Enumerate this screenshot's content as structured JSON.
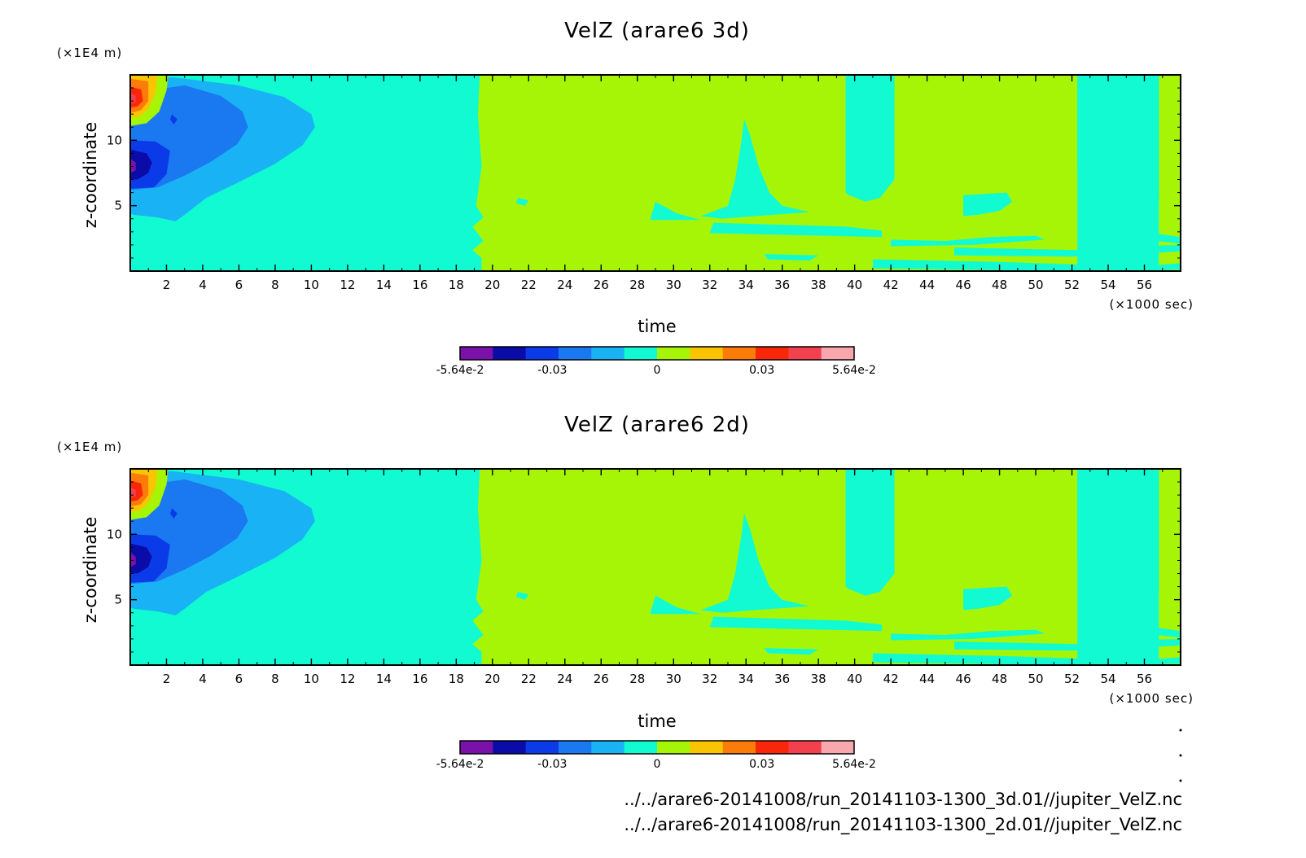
{
  "chart_data": [
    {
      "type": "heatmap",
      "title": "VelZ (arare6 3d)",
      "xlabel": "time",
      "ylabel": "z-coordinate",
      "x_unit": "(×1000 sec)",
      "y_unit": "(×1E4 m)",
      "xlim": [
        0,
        58
      ],
      "ylim": [
        0,
        15
      ],
      "x_ticks": [
        "2",
        "4",
        "6",
        "8",
        "10",
        "12",
        "14",
        "16",
        "18",
        "20",
        "22",
        "24",
        "26",
        "28",
        "30",
        "32",
        "34",
        "36",
        "38",
        "40",
        "42",
        "44",
        "46",
        "48",
        "50",
        "52",
        "54",
        "56"
      ],
      "y_ticks": [
        "5",
        "10"
      ],
      "colorbar": {
        "min": -0.0564,
        "max": 0.0564,
        "tick_labels": [
          "-5.64e-2",
          "-0.03",
          "0",
          "0.03",
          "5.64e-2"
        ],
        "tick_values": [
          -0.0564,
          -0.03,
          0,
          0.03,
          0.0564
        ],
        "colors": [
          "#7a12a9",
          "#0b0ba8",
          "#0b3be8",
          "#1a78f0",
          "#19b3f5",
          "#12fad2",
          "#a6f507",
          "#f9c503",
          "#fb7c08",
          "#fa260a",
          "#f2404e",
          "#f7a7ad"
        ]
      },
      "background_level": "#12fad2"
    },
    {
      "type": "heatmap",
      "title": "VelZ (arare6 2d)",
      "xlabel": "time",
      "ylabel": "z-coordinate",
      "x_unit": "(×1000 sec)",
      "y_unit": "(×1E4 m)",
      "xlim": [
        0,
        58
      ],
      "ylim": [
        0,
        15
      ],
      "x_ticks": [
        "2",
        "4",
        "6",
        "8",
        "10",
        "12",
        "14",
        "16",
        "18",
        "20",
        "22",
        "24",
        "26",
        "28",
        "30",
        "32",
        "34",
        "36",
        "38",
        "40",
        "42",
        "44",
        "46",
        "48",
        "50",
        "52",
        "54",
        "56"
      ],
      "y_ticks": [
        "5",
        "10"
      ],
      "colorbar": {
        "min": -0.0564,
        "max": 0.0564,
        "tick_labels": [
          "-5.64e-2",
          "-0.03",
          "0",
          "0.03",
          "5.64e-2"
        ],
        "tick_values": [
          -0.0564,
          -0.03,
          0,
          0.03,
          0.0564
        ],
        "colors": [
          "#7a12a9",
          "#0b0ba8",
          "#0b3be8",
          "#1a78f0",
          "#19b3f5",
          "#12fad2",
          "#a6f507",
          "#f9c503",
          "#fb7c08",
          "#fa260a",
          "#f2404e",
          "#f7a7ad"
        ]
      },
      "background_level": "#12fad2"
    }
  ],
  "footer": {
    "file_3d": "../../arare6-20141008/run_20141103-1300_3d.01//jupiter_VelZ.nc",
    "file_2d": "../../arare6-20141008/run_20141103-1300_2d.01//jupiter_VelZ.nc"
  }
}
